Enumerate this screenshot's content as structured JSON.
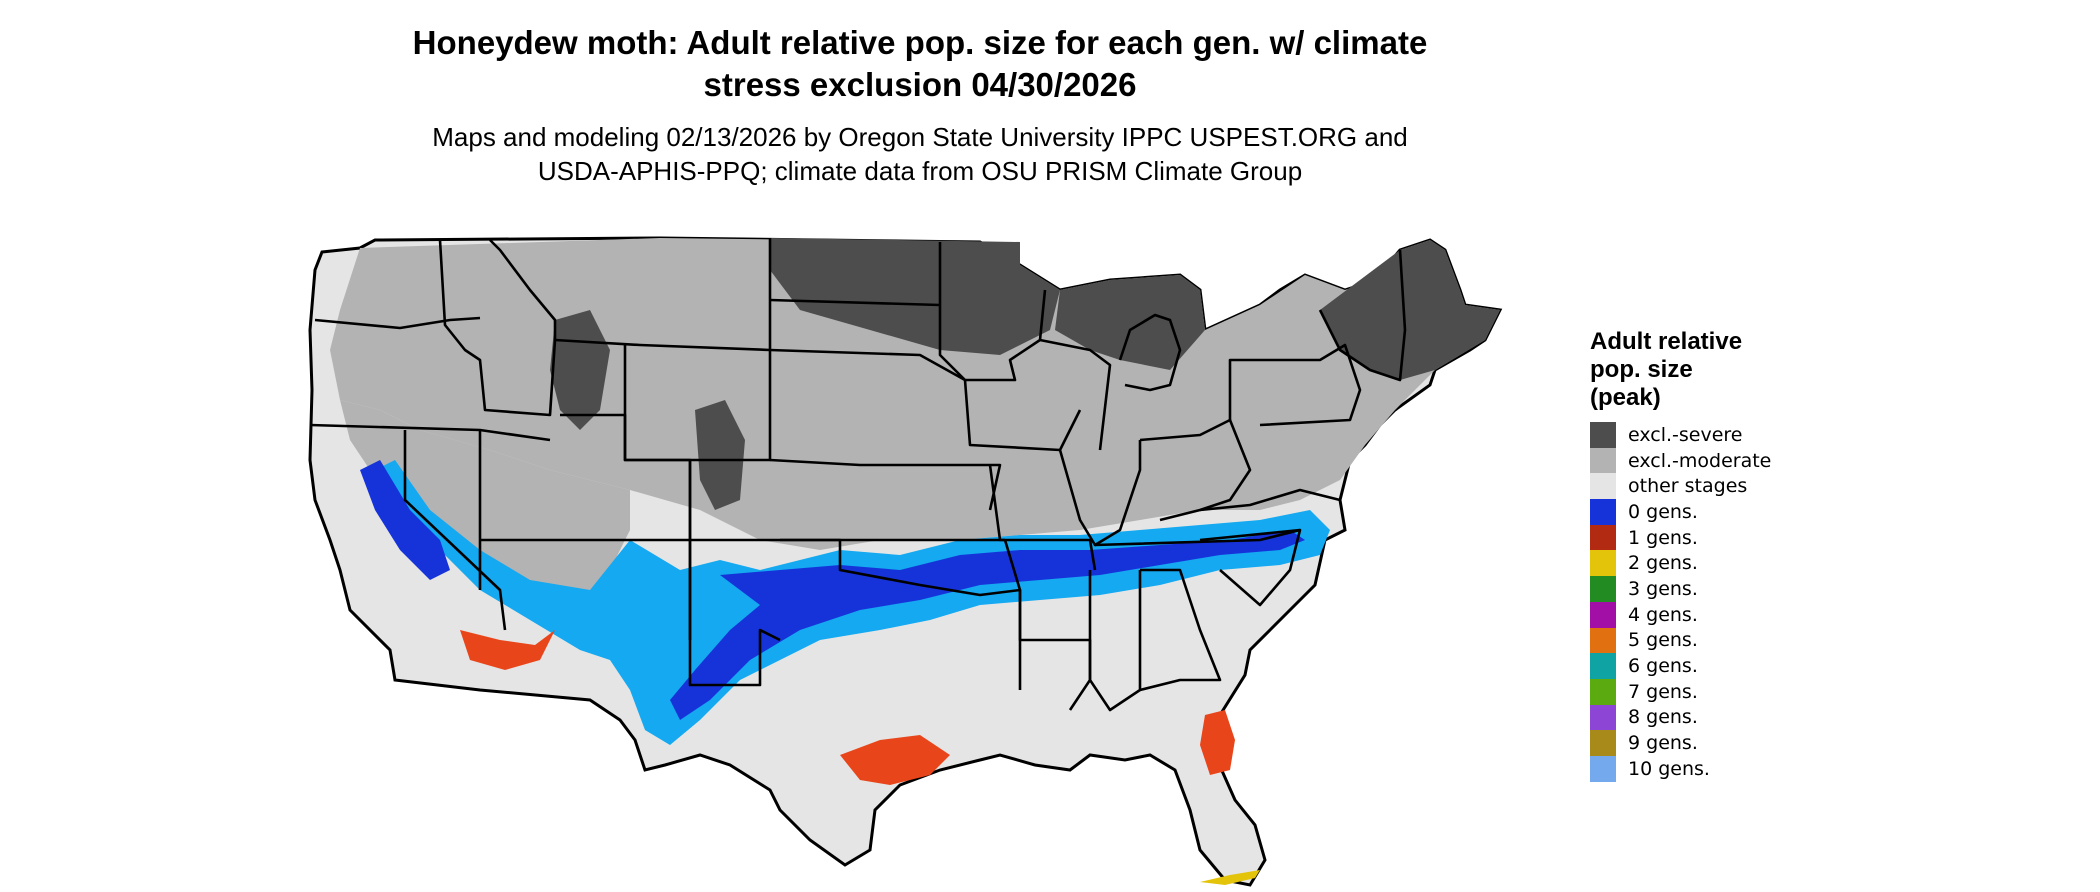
{
  "title_lines": [
    "Honeydew moth: Adult relative pop. size for each gen. w/ climate",
    "stress exclusion 04/30/2026"
  ],
  "subtitle_lines": [
    "Maps and modeling 02/13/2026 by Oregon State University IPPC USPEST.ORG and",
    "USDA-APHIS-PPQ; climate data from OSU PRISM Climate Group"
  ],
  "legend": {
    "title_lines": [
      "Adult relative",
      "pop. size",
      "(peak)"
    ],
    "items": [
      {
        "label": "excl.-severe",
        "color": "#4d4d4d"
      },
      {
        "label": "excl.-moderate",
        "color": "#b3b3b3"
      },
      {
        "label": "other stages",
        "color": "#e5e5e5"
      },
      {
        "label": "0 gens.",
        "color": "#1633d9"
      },
      {
        "label": "1 gens.",
        "color": "#b22a12"
      },
      {
        "label": "2 gens.",
        "color": "#e3c40a"
      },
      {
        "label": "3 gens.",
        "color": "#228b22"
      },
      {
        "label": "4 gens.",
        "color": "#a20fa6"
      },
      {
        "label": "5 gens.",
        "color": "#e07010"
      },
      {
        "label": "6 gens.",
        "color": "#0fa3a3"
      },
      {
        "label": "7 gens.",
        "color": "#5aaa10"
      },
      {
        "label": "8 gens.",
        "color": "#8d45d6"
      },
      {
        "label": "9 gens.",
        "color": "#a88a1a"
      },
      {
        "label": "10 gens.",
        "color": "#74a9ee"
      }
    ]
  },
  "map_colors": {
    "severe": "#4d4d4d",
    "moderate": "#b3b3b3",
    "other": "#e5e5e5",
    "gen0": "#1633d9",
    "gen0_light": "#14a9f0",
    "gen_orange": "#e8461a",
    "gen_yellow": "#e3c40a",
    "border": "#000000"
  }
}
